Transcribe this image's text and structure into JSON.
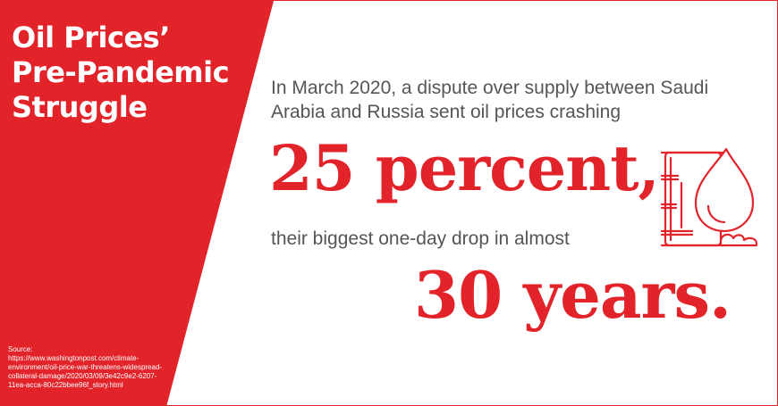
{
  "title_lines": [
    "Oil Prices’",
    "Pre-Pandemic",
    "Struggle"
  ],
  "intro_lines": [
    "In March 2020, a dispute over supply between Saudi",
    "Arabia and Russia sent oil prices crashing"
  ],
  "headline_1": "25 percent,",
  "subline": "their biggest one-day drop in almost",
  "headline_2": "30 years.",
  "source_lines": [
    "Source:",
    "https://www.washingtonpost.com/climate-",
    "environment/oil-price-war-threatens-widespread-",
    "collateral-damage/2020/03/09/3e42c9e2-6207-",
    "11ea-acca-80c22bbee96f_story.html"
  ],
  "icon": "oil-barrel-drop-icon",
  "colors": {
    "accent": "#e2232a",
    "body_text": "#555555",
    "background": "#ffffff"
  }
}
